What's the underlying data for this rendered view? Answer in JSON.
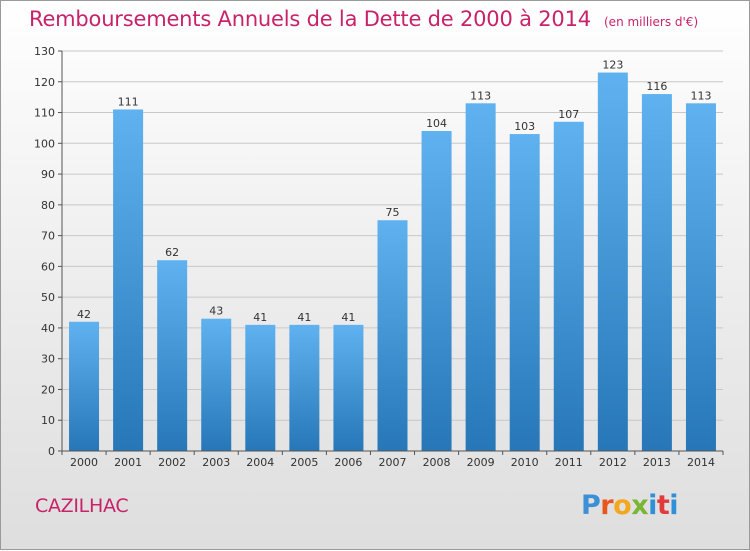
{
  "header": {
    "title": "Remboursements Annuels de la Dette de 2000 à 2014",
    "unit": "(en milliers d'€)"
  },
  "footer": {
    "commune": "CAZILHAC",
    "logo_text": "Proxiti"
  },
  "colors": {
    "title": "#c8236a",
    "bar_light": "#5fb2ef",
    "bar_dark": "#2777b8",
    "grid": "#c8c8c8",
    "axis": "#555555"
  },
  "chart_data": {
    "type": "bar",
    "title": "Remboursements Annuels de la Dette de 2000 à 2014",
    "subtitle": "(en milliers d'€)",
    "xlabel": "",
    "ylabel": "",
    "categories": [
      "2000",
      "2001",
      "2002",
      "2003",
      "2004",
      "2005",
      "2006",
      "2007",
      "2008",
      "2009",
      "2010",
      "2011",
      "2012",
      "2013",
      "2014"
    ],
    "values": [
      42,
      111,
      62,
      43,
      41,
      41,
      41,
      75,
      104,
      113,
      103,
      107,
      123,
      116,
      113
    ],
    "ylim": [
      0,
      130
    ],
    "yticks": [
      0,
      10,
      20,
      30,
      40,
      50,
      60,
      70,
      80,
      90,
      100,
      110,
      120,
      130
    ],
    "grid": true,
    "data_labels": true
  }
}
